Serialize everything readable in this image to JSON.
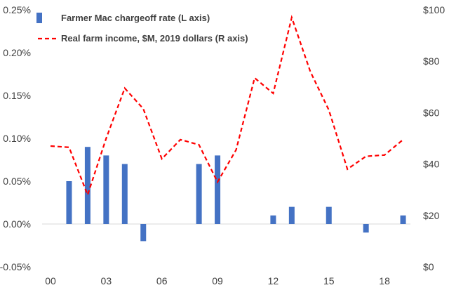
{
  "chart_data": {
    "type": "bar+line",
    "x": [
      "2000",
      "2001",
      "2002",
      "2003",
      "2004",
      "2005",
      "2006",
      "2007",
      "2008",
      "2009",
      "2010",
      "2011",
      "2012",
      "2013",
      "2014",
      "2015",
      "2016",
      "2017",
      "2018",
      "2019"
    ],
    "x_tick_labels": [
      "00",
      "03",
      "06",
      "09",
      "12",
      "15",
      "18"
    ],
    "x_tick_years": [
      "2000",
      "2003",
      "2006",
      "2009",
      "2012",
      "2015",
      "2018"
    ],
    "left_axis": {
      "ylim": [
        -0.05,
        0.25
      ],
      "ticks": [
        -0.05,
        0.0,
        0.05,
        0.1,
        0.15,
        0.2,
        0.25
      ],
      "tick_labels": [
        "-0.05%",
        "0.00%",
        "0.05%",
        "0.10%",
        "0.15%",
        "0.20%",
        "0.25%"
      ]
    },
    "right_axis": {
      "ylim": [
        0,
        100
      ],
      "ticks": [
        0,
        20,
        40,
        60,
        80,
        100
      ],
      "tick_labels": [
        "$0",
        "$20",
        "$40",
        "$60",
        "$80",
        "$100"
      ]
    },
    "series": [
      {
        "name": "Farmer Mac chargeoff rate (L axis)",
        "type": "bar",
        "axis": "left",
        "color": "#4472C4",
        "values": [
          0.0,
          0.05,
          0.09,
          0.08,
          0.07,
          -0.02,
          0.0,
          0.0,
          0.07,
          0.08,
          0.0,
          0.0,
          0.01,
          0.02,
          0.0,
          0.02,
          0.0,
          -0.01,
          0.0,
          0.01
        ]
      },
      {
        "name": "Real farm income, $M, 2019 dollars (R axis)",
        "type": "line",
        "axis": "right",
        "style": "dashed",
        "color": "#FF0000",
        "values": [
          47,
          46.5,
          28,
          50,
          69.5,
          61.5,
          42,
          49.5,
          47.5,
          33,
          45.5,
          73.5,
          67.5,
          97,
          76,
          61,
          38,
          43,
          43.5,
          49.5
        ]
      }
    ],
    "legend_position": "top-left",
    "grid": false
  }
}
